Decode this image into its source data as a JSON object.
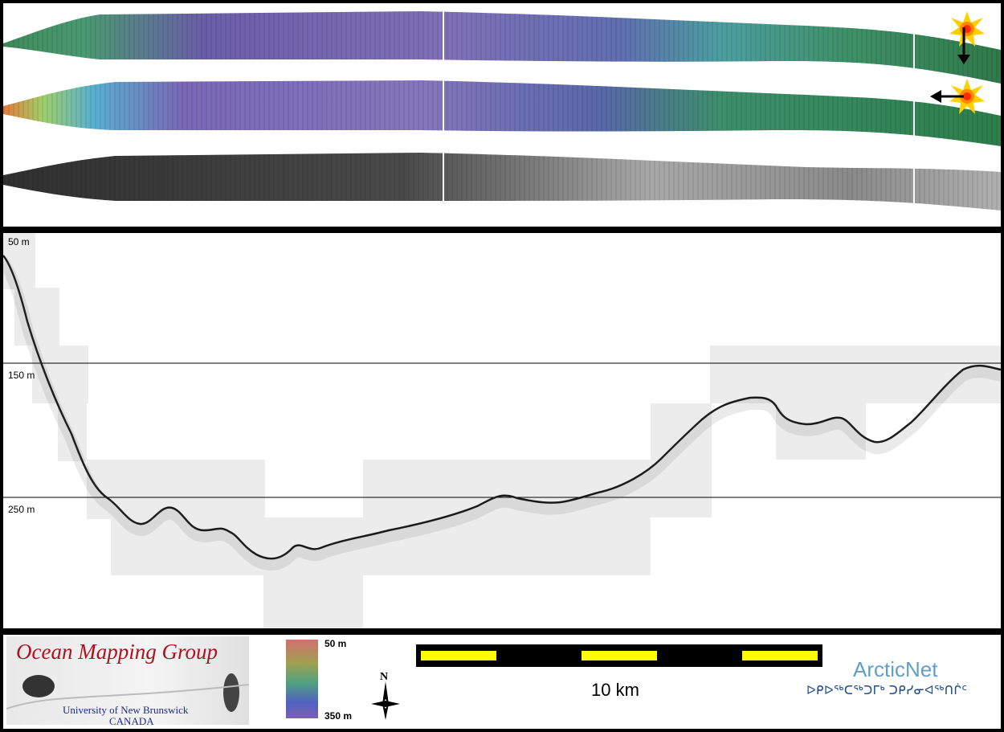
{
  "profile": {
    "depth_labels": [
      "50 m",
      "150 m",
      "250 m"
    ]
  },
  "colorbar": {
    "top_label": "50 m",
    "bottom_label": "350 m"
  },
  "scale_bar": {
    "label": "10 km",
    "colors": {
      "fill": "#ffff00",
      "segment": "#000000"
    }
  },
  "north_arrow": {
    "label": "N"
  },
  "logos": {
    "omg_title": "Ocean Mapping Group",
    "omg_university": "University of New Brunswick",
    "omg_country": "CANADA",
    "arcticnet_name": "ArcticNet",
    "arcticnet_syllabics": "ᐅᑭᐅᖅᑕᖅᑐᒥᒃ ᑐᑭᓯᓂᐊᖅᑎᒌᑦ"
  },
  "colors": {
    "swath_shallow": "#e07a3a",
    "swath_mid": "#4aa070",
    "swath_deep": "#8070b8",
    "omg_red": "#b01020",
    "arctic_blue": "#5f9fc8"
  }
}
